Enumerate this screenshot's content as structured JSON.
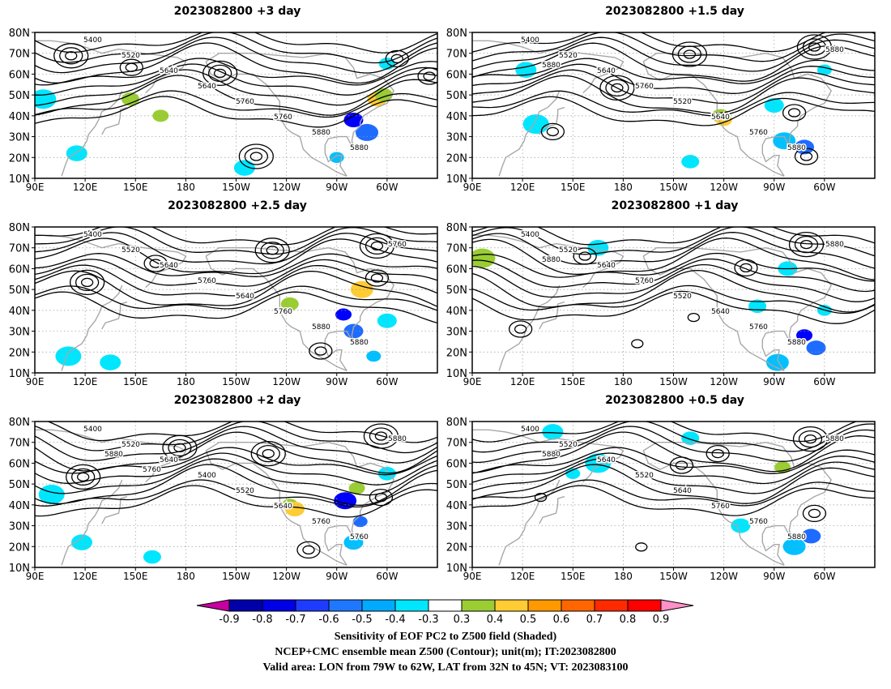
{
  "panels": [
    {
      "title": "2023082800  +3 day",
      "lows": [
        [
          0.09,
          0.16,
          3.0
        ],
        [
          0.46,
          0.28,
          3.0
        ],
        [
          0.24,
          0.24,
          1.5
        ],
        [
          0.55,
          0.85,
          2.5
        ],
        [
          0.9,
          0.18,
          2.2
        ],
        [
          0.98,
          0.3,
          2.0
        ]
      ],
      "contour_labels": [
        "5400",
        "5520",
        "5640",
        "5640",
        "5760",
        "5760",
        "5880",
        "5880"
      ],
      "shade_blobs": [
        {
          "color": "#00e6ff",
          "lon": 95,
          "lat": 48
        },
        {
          "color": "#00e6ff",
          "lon": 115,
          "lat": 22
        },
        {
          "color": "#9acd32",
          "lon": 147,
          "lat": 48
        },
        {
          "color": "#9acd32",
          "lon": 165,
          "lat": 40
        },
        {
          "color": "#0000ff",
          "lon": -80,
          "lat": 38
        },
        {
          "color": "#1e6bff",
          "lon": -72,
          "lat": 32
        },
        {
          "color": "#00c0ff",
          "lon": -90,
          "lat": 20
        },
        {
          "color": "#ffcc33",
          "lon": -66,
          "lat": 48
        },
        {
          "color": "#9acd32",
          "lon": -62,
          "lat": 50
        },
        {
          "color": "#00e6ff",
          "lon": -60,
          "lat": 65
        },
        {
          "color": "#00e6ff",
          "lon": -145,
          "lat": 15
        }
      ]
    },
    {
      "title": "2023082800  +1.5 day",
      "lows": [
        [
          0.8,
          0.55,
          2.4
        ],
        [
          0.85,
          0.1,
          3.0
        ],
        [
          0.54,
          0.15,
          3.0
        ],
        [
          0.36,
          0.38,
          3.0
        ],
        [
          0.83,
          0.85,
          2.0
        ],
        [
          0.2,
          0.68,
          1.5
        ]
      ],
      "contour_labels": [
        "5400",
        "5520",
        "5640",
        "5760",
        "5520",
        "5640",
        "5760",
        "5880",
        "5880",
        "5880"
      ],
      "shade_blobs": [
        {
          "color": "#00e6ff",
          "lon": 128,
          "lat": 36
        },
        {
          "color": "#00e6ff",
          "lon": 122,
          "lat": 62
        },
        {
          "color": "#9acd32",
          "lon": -122,
          "lat": 40
        },
        {
          "color": "#ffcc33",
          "lon": -120,
          "lat": 38
        },
        {
          "color": "#1e6bff",
          "lon": -72,
          "lat": 25
        },
        {
          "color": "#00c0ff",
          "lon": -84,
          "lat": 28
        },
        {
          "color": "#00e6ff",
          "lon": -60,
          "lat": 62
        },
        {
          "color": "#00e6ff",
          "lon": -90,
          "lat": 45
        },
        {
          "color": "#00e6ff",
          "lon": -140,
          "lat": 18
        }
      ]
    },
    {
      "title": "2023082800  +2.5 day",
      "lows": [
        [
          0.85,
          0.13,
          3.0
        ],
        [
          0.85,
          0.35,
          2.0
        ],
        [
          0.59,
          0.16,
          2.5
        ],
        [
          0.3,
          0.25,
          2.0
        ],
        [
          0.13,
          0.38,
          2.5
        ],
        [
          0.71,
          0.85,
          1.6
        ]
      ],
      "contour_labels": [
        "5400",
        "5520",
        "5640",
        "5760",
        "5640",
        "5760",
        "5880",
        "5880",
        "5760"
      ],
      "shade_blobs": [
        {
          "color": "#00e6ff",
          "lon": 110,
          "lat": 18
        },
        {
          "color": "#00e6ff",
          "lon": 135,
          "lat": 15
        },
        {
          "color": "#9acd32",
          "lon": -118,
          "lat": 43
        },
        {
          "color": "#0000ff",
          "lon": -86,
          "lat": 38
        },
        {
          "color": "#1e6bff",
          "lon": -80,
          "lat": 30
        },
        {
          "color": "#ffcc33",
          "lon": -75,
          "lat": 50
        },
        {
          "color": "#00c0ff",
          "lon": -68,
          "lat": 18
        },
        {
          "color": "#00e6ff",
          "lon": -60,
          "lat": 35
        }
      ]
    },
    {
      "title": "2023082800  +1 day",
      "lows": [
        [
          0.83,
          0.12,
          2.8
        ],
        [
          0.28,
          0.2,
          1.6
        ],
        [
          0.68,
          0.28,
          1.8
        ],
        [
          0.55,
          0.62,
          1.4
        ],
        [
          0.12,
          0.7,
          1.6
        ],
        [
          0.41,
          0.8,
          1.3
        ]
      ],
      "contour_labels": [
        "5400",
        "5520",
        "5640",
        "5760",
        "5520",
        "5640",
        "5760",
        "5880",
        "5880",
        "5880"
      ],
      "shade_blobs": [
        {
          "color": "#9acd32",
          "lon": 96,
          "lat": 65
        },
        {
          "color": "#00e6ff",
          "lon": 165,
          "lat": 70
        },
        {
          "color": "#00e6ff",
          "lon": -100,
          "lat": 42
        },
        {
          "color": "#0000ff",
          "lon": -72,
          "lat": 28
        },
        {
          "color": "#1e6bff",
          "lon": -65,
          "lat": 22
        },
        {
          "color": "#00c0ff",
          "lon": -88,
          "lat": 15
        },
        {
          "color": "#00e6ff",
          "lon": -60,
          "lat": 40
        },
        {
          "color": "#00e6ff",
          "lon": -82,
          "lat": 60
        }
      ]
    },
    {
      "title": "2023082800  +2 day",
      "lows": [
        [
          0.86,
          0.1,
          3.0
        ],
        [
          0.86,
          0.52,
          1.8
        ],
        [
          0.58,
          0.22,
          2.5
        ],
        [
          0.36,
          0.18,
          2.6
        ],
        [
          0.12,
          0.38,
          2.8
        ],
        [
          0.68,
          0.88,
          1.5
        ]
      ],
      "contour_labels": [
        "5400",
        "5520",
        "5640",
        "5400",
        "5520",
        "5640",
        "5760",
        "5760",
        "5880",
        "5880",
        "5760"
      ],
      "shade_blobs": [
        {
          "color": "#00e6ff",
          "lon": 100,
          "lat": 45
        },
        {
          "color": "#00e6ff",
          "lon": 118,
          "lat": 22
        },
        {
          "color": "#00e6ff",
          "lon": 160,
          "lat": 15
        },
        {
          "color": "#9acd32",
          "lon": -118,
          "lat": 40
        },
        {
          "color": "#ffcc33",
          "lon": -115,
          "lat": 38
        },
        {
          "color": "#0000ff",
          "lon": -85,
          "lat": 42
        },
        {
          "color": "#1e6bff",
          "lon": -76,
          "lat": 32
        },
        {
          "color": "#00c0ff",
          "lon": -80,
          "lat": 22
        },
        {
          "color": "#00e6ff",
          "lon": -60,
          "lat": 55
        },
        {
          "color": "#9acd32",
          "lon": -78,
          "lat": 48
        }
      ]
    },
    {
      "title": "2023082800  +0.5 day",
      "lows": [
        [
          0.84,
          0.12,
          3.0
        ],
        [
          0.52,
          0.3,
          1.6
        ],
        [
          0.61,
          0.22,
          2.0
        ],
        [
          0.17,
          0.52,
          1.4
        ],
        [
          0.85,
          0.63,
          1.6
        ],
        [
          0.42,
          0.86,
          1.2
        ]
      ],
      "contour_labels": [
        "5400",
        "5520",
        "5640",
        "5520",
        "5640",
        "5760",
        "5760",
        "5880",
        "5880",
        "5880"
      ],
      "shade_blobs": [
        {
          "color": "#00e6ff",
          "lon": 165,
          "lat": 60
        },
        {
          "color": "#00e6ff",
          "lon": 138,
          "lat": 75
        },
        {
          "color": "#00e6ff",
          "lon": -140,
          "lat": 72
        },
        {
          "color": "#9acd32",
          "lon": -85,
          "lat": 58
        },
        {
          "color": "#1e6bff",
          "lon": -68,
          "lat": 25
        },
        {
          "color": "#00c0ff",
          "lon": -78,
          "lat": 20
        },
        {
          "color": "#00e6ff",
          "lon": 150,
          "lat": 55
        },
        {
          "color": "#00e6ff",
          "lon": -110,
          "lat": 30
        }
      ]
    }
  ],
  "axes": {
    "lon_ticks": [
      "90E",
      "120E",
      "150E",
      "180",
      "150W",
      "120W",
      "90W",
      "60W"
    ],
    "lat_ticks": [
      "80N",
      "70N",
      "60N",
      "50N",
      "40N",
      "30N",
      "20N",
      "10N"
    ],
    "lon_range": [
      90,
      330
    ],
    "lat_range": [
      10,
      80
    ]
  },
  "colorbar": {
    "levels": [
      "-0.9",
      "-0.8",
      "-0.7",
      "-0.6",
      "-0.5",
      "-0.4",
      "-0.3",
      "0.3",
      "0.4",
      "0.5",
      "0.6",
      "0.7",
      "0.8",
      "0.9"
    ],
    "colors": [
      "#c800a0",
      "#0000a8",
      "#0000e6",
      "#1e3cff",
      "#1e78ff",
      "#00aaff",
      "#00e6ff",
      "#ffffff",
      "#9acd32",
      "#ffcc33",
      "#ff9900",
      "#ff6600",
      "#ff2a00",
      "#ff0000",
      "#ff90c8"
    ]
  },
  "caption": {
    "line1": "Sensitivity of EOF PC2 to Z500 field (Shaded)",
    "line2": "NCEP+CMC ensemble mean Z500 (Contour); unit(m); IT:2023082800",
    "line3": "Valid area: LON from 79W to 62W, LAT from 32N to 45N; VT: 2023083100"
  }
}
